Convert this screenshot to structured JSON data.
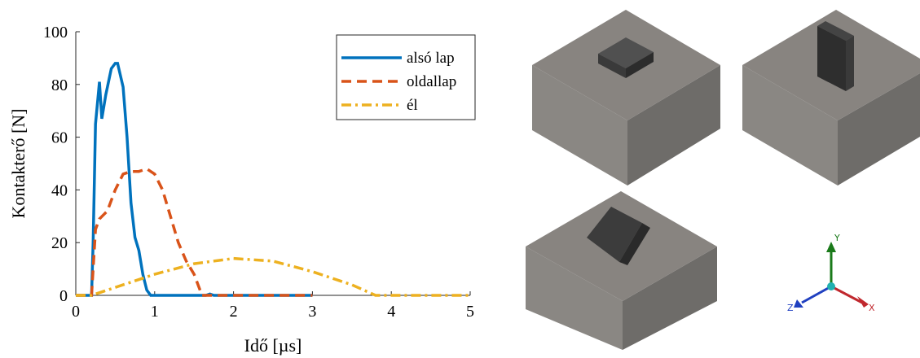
{
  "chart_data": {
    "type": "line",
    "xlabel": "Idő [µs]",
    "ylabel": "Kontakterő [N]",
    "xlim": [
      0,
      5
    ],
    "xticks": [
      0,
      1,
      2,
      3,
      4,
      5
    ],
    "ylim": [
      0,
      100
    ],
    "yticks": [
      0,
      20,
      40,
      60,
      80,
      100
    ],
    "legend": "upper right",
    "series": [
      {
        "name": "alsó lap",
        "color": "#0072bd",
        "style": "solid",
        "x": [
          0,
          0.2,
          0.22,
          0.25,
          0.3,
          0.33,
          0.38,
          0.45,
          0.5,
          0.53,
          0.6,
          0.65,
          0.7,
          0.75,
          0.8,
          0.85,
          0.9,
          0.95,
          1.65,
          1.7,
          1.75,
          3
        ],
        "values": [
          0,
          0,
          20,
          65,
          81,
          67,
          76,
          86,
          88,
          88,
          79,
          60,
          35,
          22,
          17,
          8,
          2,
          0,
          0,
          0.5,
          0,
          0
        ]
      },
      {
        "name": "oldallap",
        "color": "#d95319",
        "style": "dashed",
        "x": [
          0,
          0.2,
          0.25,
          0.3,
          0.4,
          0.5,
          0.6,
          0.7,
          0.8,
          0.9,
          1.0,
          1.1,
          1.2,
          1.3,
          1.4,
          1.5,
          1.6,
          3
        ],
        "values": [
          0,
          0,
          25,
          29,
          32,
          40,
          46,
          47,
          47,
          48,
          46,
          40,
          30,
          20,
          13,
          8,
          0,
          0
        ]
      },
      {
        "name": "él",
        "color": "#edb120",
        "style": "dashdot",
        "x": [
          0,
          0.2,
          0.5,
          1.0,
          1.5,
          2.0,
          2.5,
          3.0,
          3.5,
          3.8,
          5
        ],
        "values": [
          0,
          0,
          3,
          8,
          12,
          14,
          13,
          9,
          4,
          0,
          0
        ]
      }
    ]
  },
  "triad": {
    "x": "X",
    "y": "Y",
    "z": "Z"
  }
}
